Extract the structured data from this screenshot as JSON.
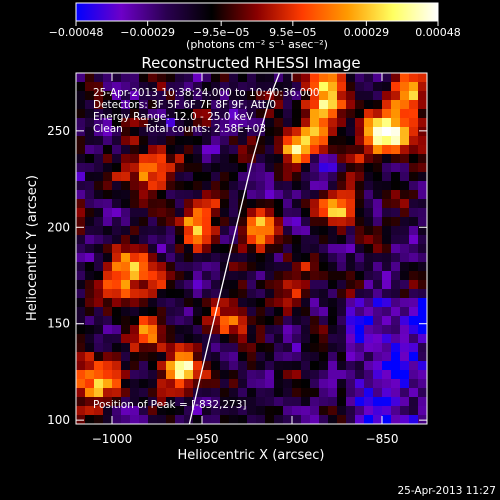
{
  "chart_data": {
    "type": "heatmap",
    "title": "Reconstructed RHESSI Image",
    "xlabel": "Heliocentric X (arcsec)",
    "ylabel": "Heliocentric Y (arcsec)",
    "xlim": [
      -1020,
      -825
    ],
    "ylim": [
      98,
      280
    ],
    "x_ticks": [
      -1000,
      -950,
      -900,
      -850
    ],
    "x_tick_labels": [
      "−1000",
      "−950",
      "−900",
      "−850"
    ],
    "y_ticks": [
      100,
      150,
      200,
      250
    ],
    "y_tick_labels": [
      "100",
      "150",
      "200",
      "250"
    ],
    "colorbar": {
      "range": [
        -0.00048,
        0.00048
      ],
      "ticks": [
        -0.00048,
        -0.00029,
        -9.5e-05,
        9.5e-05,
        0.00029,
        0.00048
      ],
      "tick_labels": [
        "−0.00048",
        "−0.00029",
        "−9.5e−05",
        "9.5e−05",
        "0.00029",
        "0.00048"
      ],
      "unit_label": "(photons cm⁻² s⁻¹ asec⁻²)",
      "colormap": [
        "#0000ff",
        "#6d00c8",
        "#2a0050",
        "#000000",
        "#8a0000",
        "#ff3c00",
        "#ff9a00",
        "#ffff60",
        "#ffffff"
      ]
    },
    "limb_curve": [
      [
        -957,
        98
      ],
      [
        -949,
        130
      ],
      [
        -940,
        165
      ],
      [
        -931,
        200
      ],
      [
        -922,
        235
      ],
      [
        -912,
        268
      ],
      [
        -907,
        280
      ]
    ],
    "annotations": {
      "time_range": "25-Apr-2013 10:38:24.000 to 10:40:36.000",
      "detectors": "Detectors: 3F 5F 6F 7F 8F 9F, Att 0",
      "energy": "Energy Range: 12.0 - 25.0 keV",
      "method": "Clean",
      "total_counts": "Total counts: 2.58E+03",
      "peak": "Position of Peak = [-832,273]"
    },
    "peak": [
      -832,
      273
    ],
    "timestamp": "25-Apr-2013 11:27"
  }
}
